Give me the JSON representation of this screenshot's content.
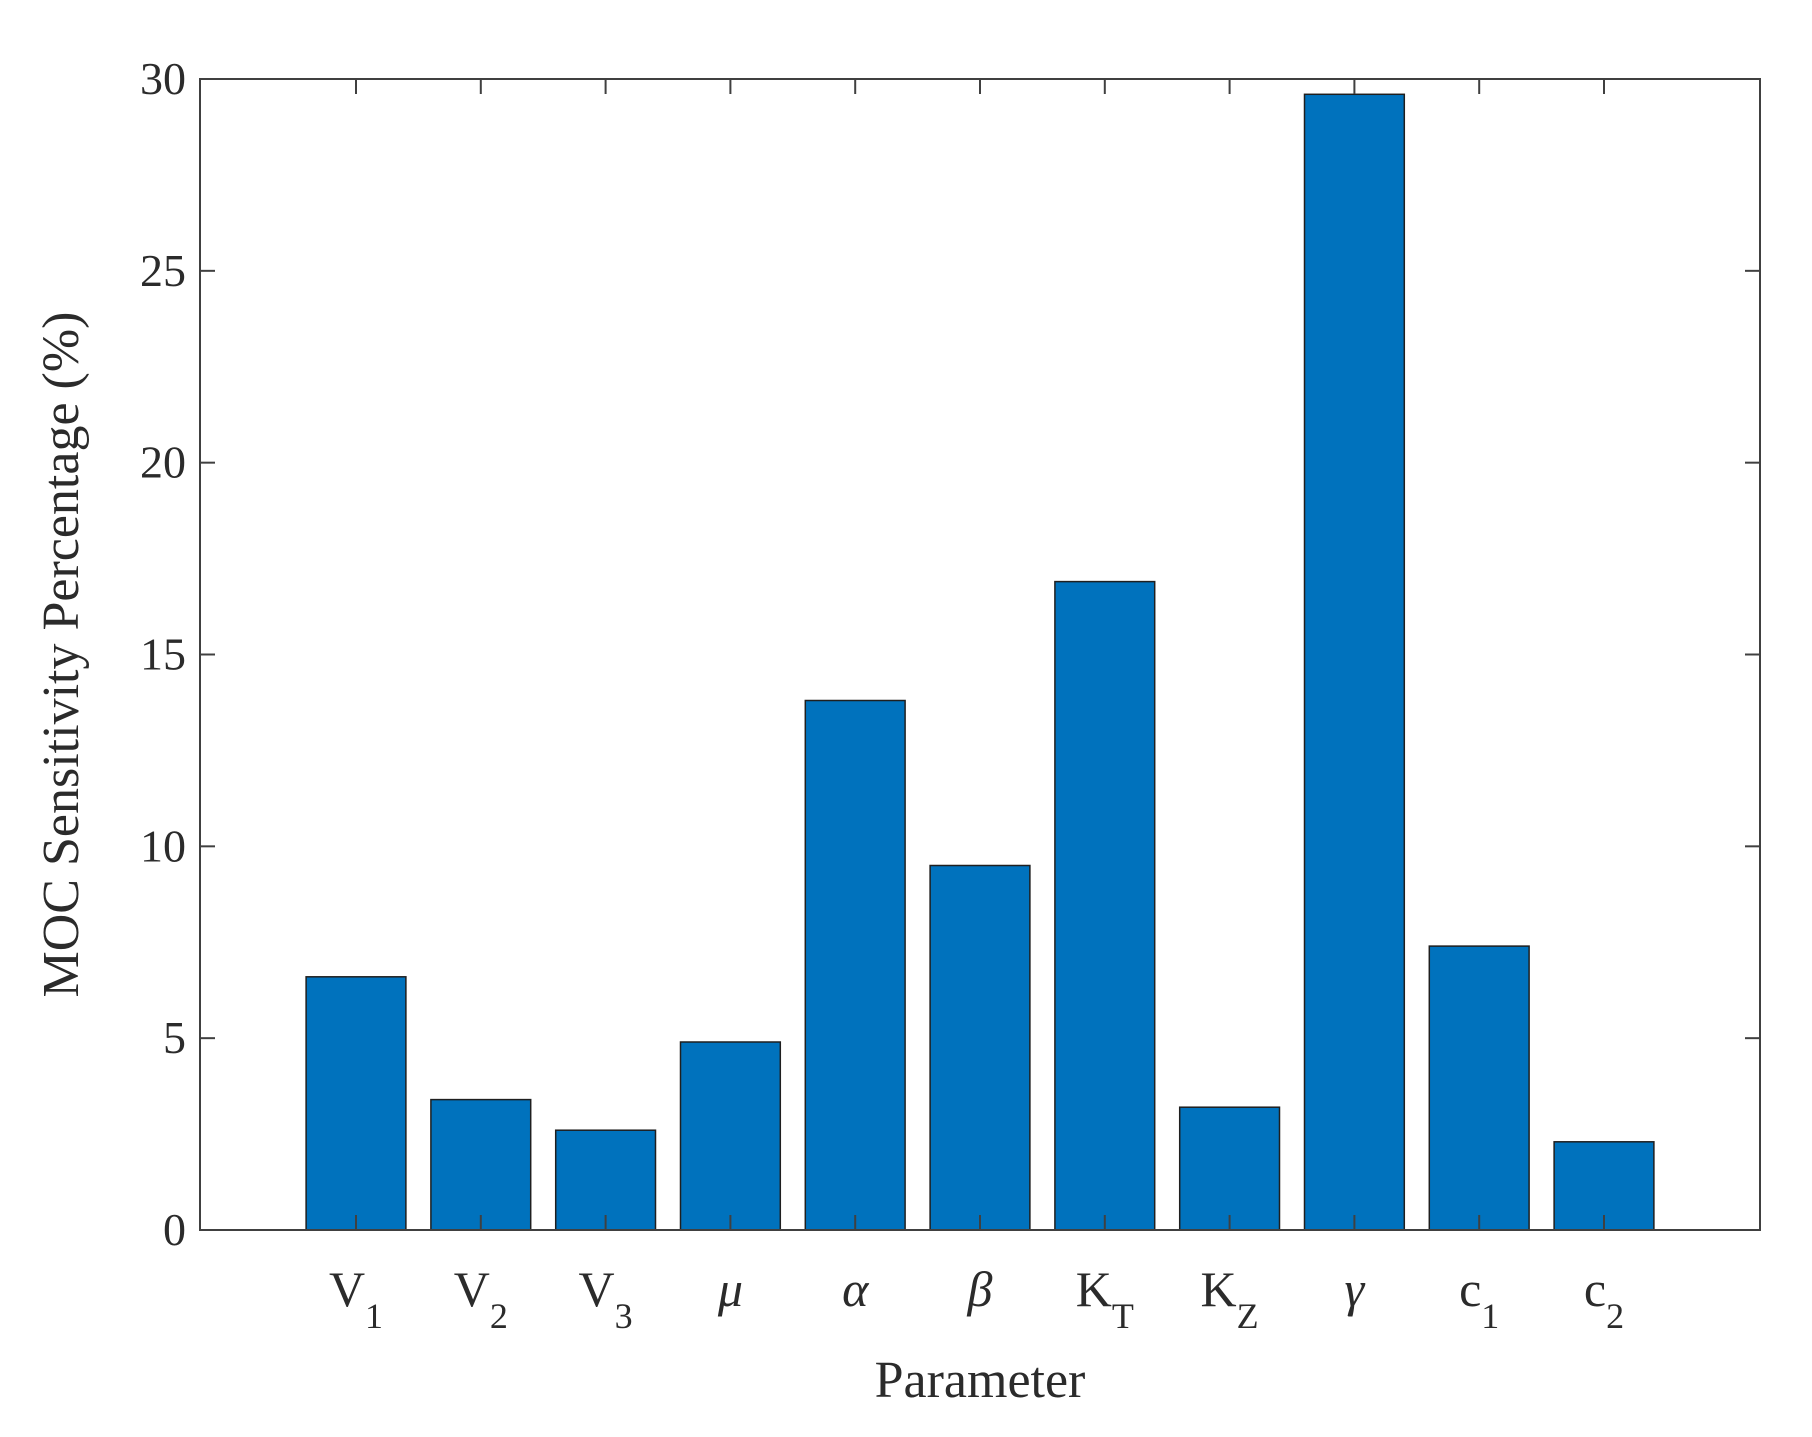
{
  "chart_data": {
    "type": "bar",
    "categories": [
      {
        "base": "V",
        "sub": "1",
        "italic": false
      },
      {
        "base": "V",
        "sub": "2",
        "italic": false
      },
      {
        "base": "V",
        "sub": "3",
        "italic": false
      },
      {
        "base": "μ",
        "sub": "",
        "italic": true
      },
      {
        "base": "α",
        "sub": "",
        "italic": true
      },
      {
        "base": "β",
        "sub": "",
        "italic": true
      },
      {
        "base": "K",
        "sub": "T",
        "italic": false
      },
      {
        "base": "K",
        "sub": "Z",
        "italic": false
      },
      {
        "base": "γ",
        "sub": "",
        "italic": true
      },
      {
        "base": "c",
        "sub": "1",
        "italic": false
      },
      {
        "base": "c",
        "sub": "2",
        "italic": false
      }
    ],
    "values": [
      6.6,
      3.4,
      2.6,
      4.9,
      13.8,
      9.5,
      16.9,
      3.2,
      29.6,
      7.4,
      2.3
    ],
    "title": "",
    "xlabel": "Parameter",
    "ylabel": "MOC Sensitivity Percentage (%)",
    "ylim": [
      0,
      30
    ],
    "yticks": [
      0,
      5,
      10,
      15,
      20,
      25,
      30
    ],
    "grid": false,
    "legend": "none",
    "colors": {
      "bar_fill": "#0072bd",
      "bar_stroke": "#1f1f1f",
      "axis": "#404040",
      "text": "#2b2b2b"
    }
  }
}
